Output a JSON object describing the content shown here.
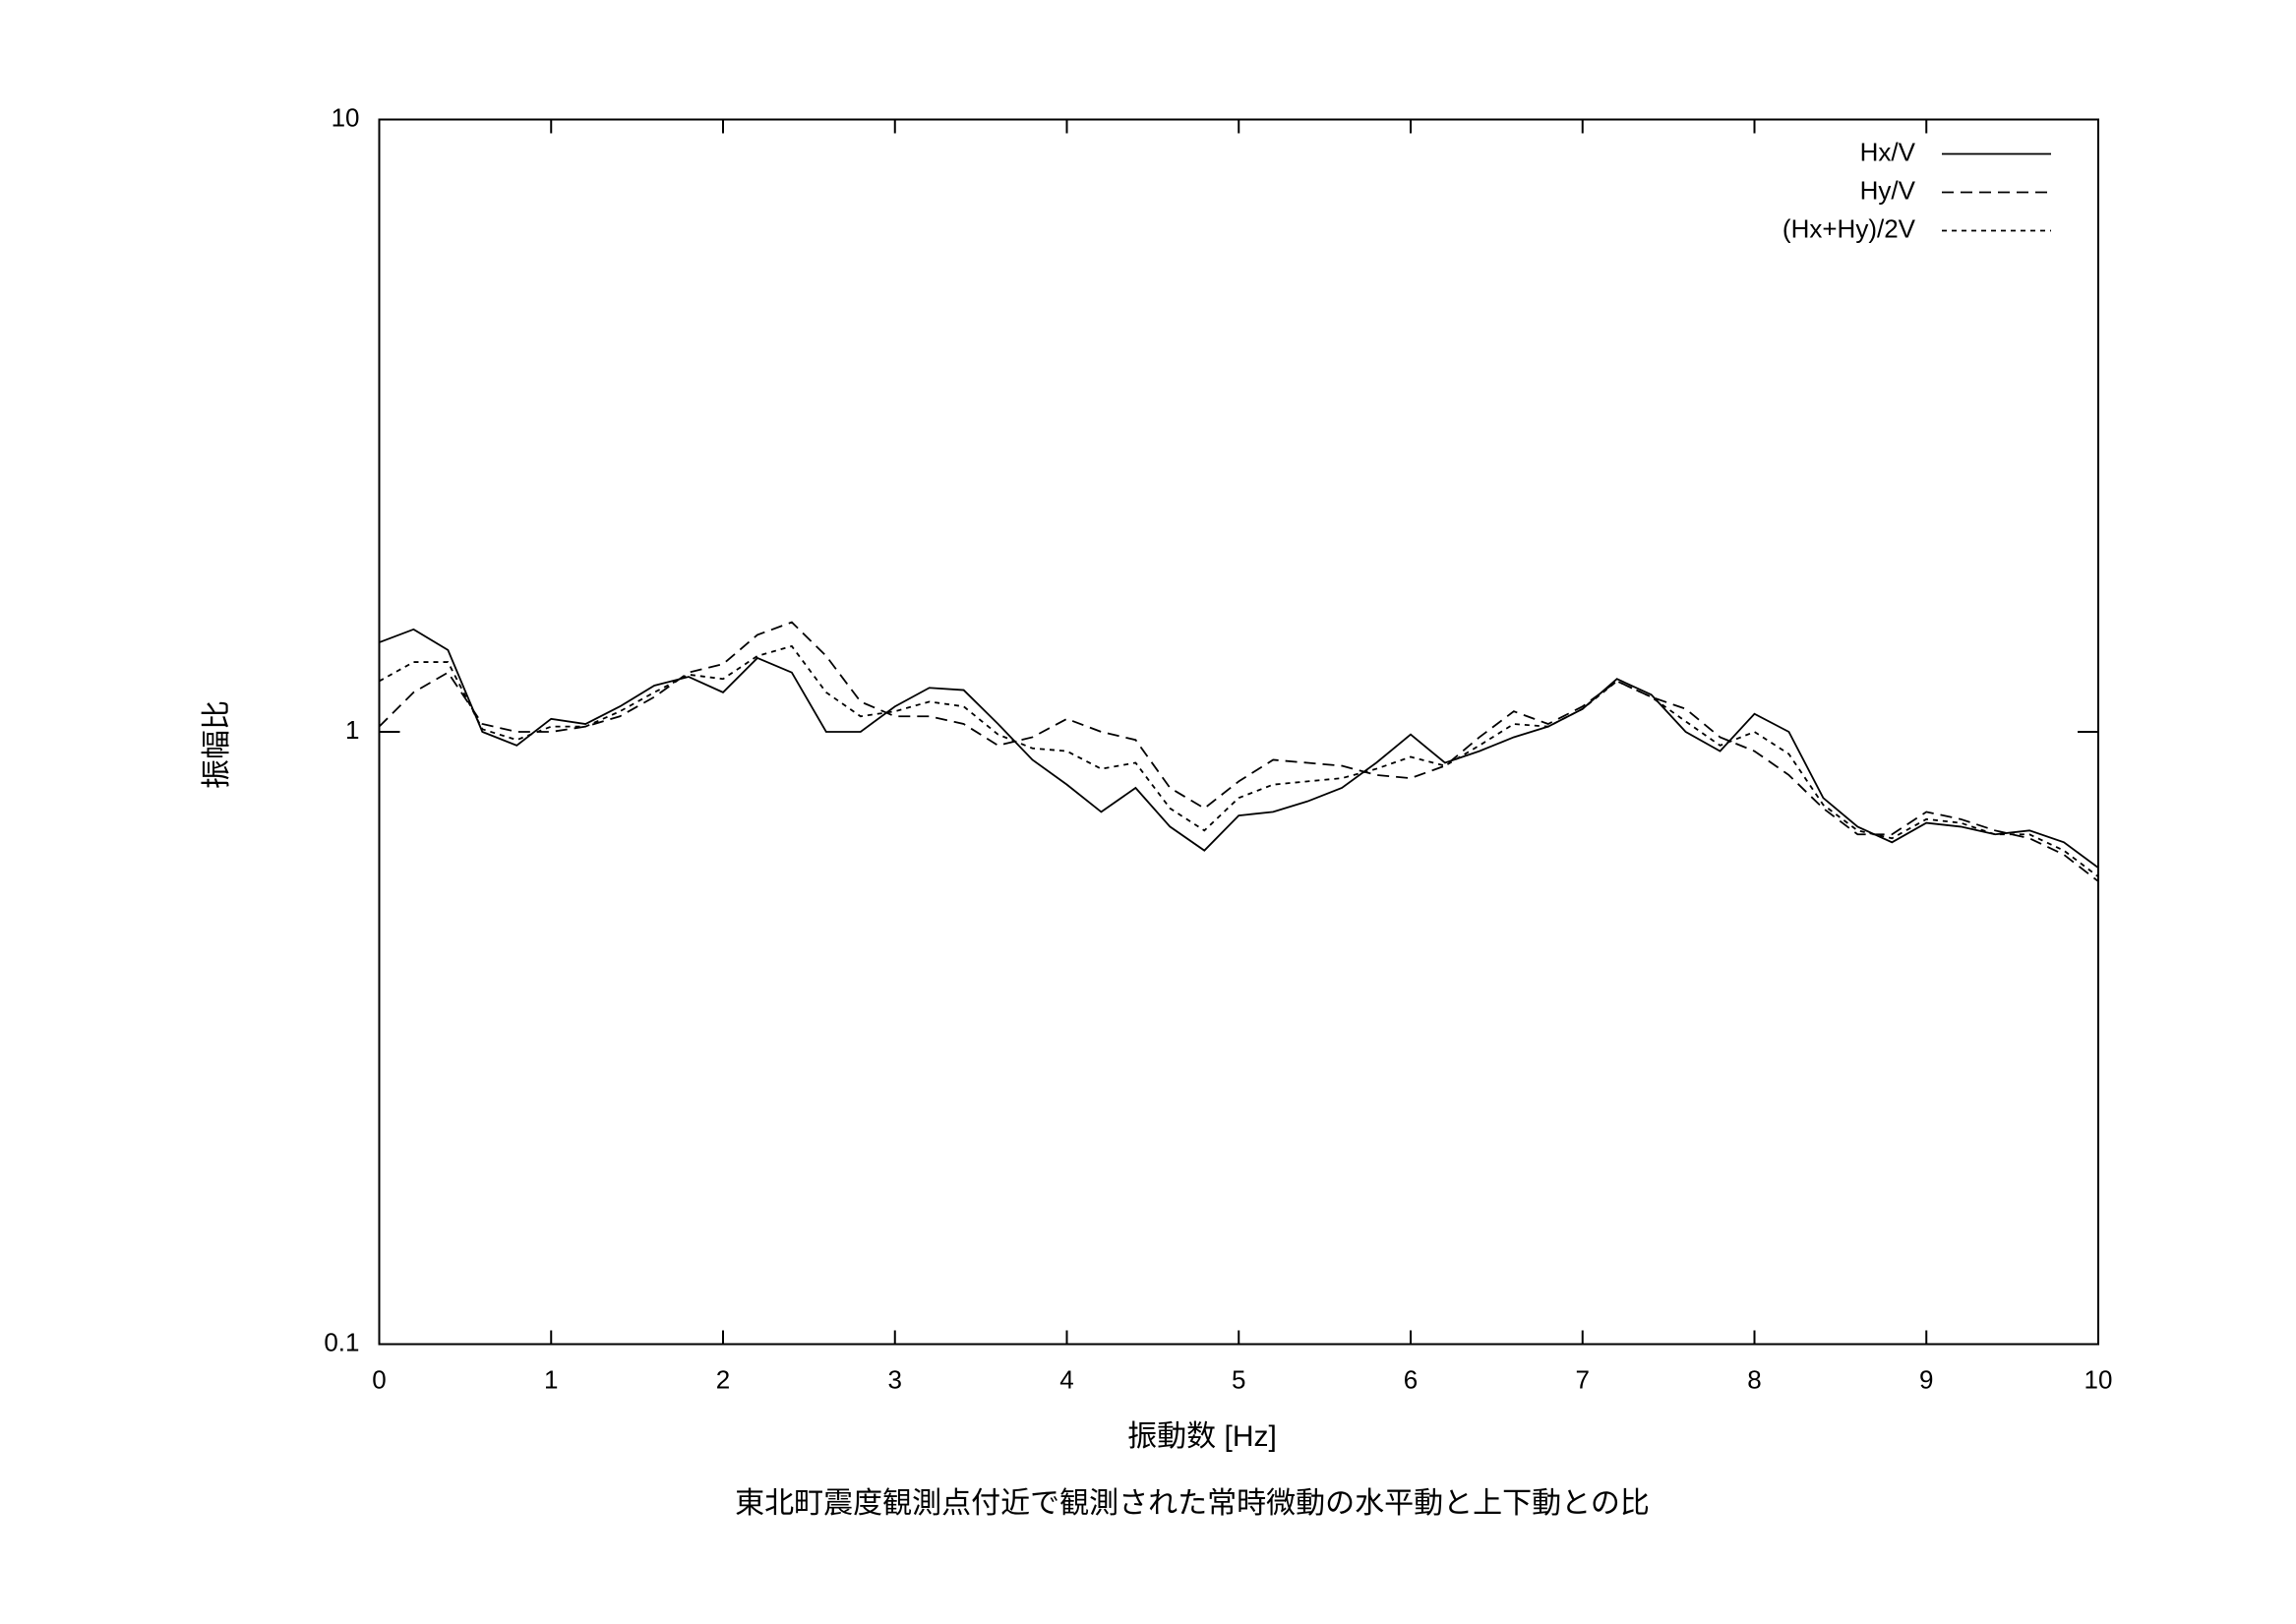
{
  "chart_data": {
    "type": "line",
    "title": "東北町震度観測点付近で観測された常時微動の水平動と上下動との比",
    "x_label": "振動数 [Hz]",
    "y_label": "振幅比",
    "x": [
      0,
      0.2,
      0.4,
      0.6,
      0.8,
      1,
      1.2,
      1.4,
      1.6,
      1.8,
      2,
      2.2,
      2.4,
      2.6,
      2.8,
      3,
      3.2,
      3.4,
      3.6,
      3.8,
      4,
      4.2,
      4.4,
      4.6,
      4.8,
      5,
      5.2,
      5.4,
      5.6,
      5.8,
      6,
      6.2,
      6.4,
      6.6,
      6.8,
      7,
      7.2,
      7.4,
      7.6,
      7.8,
      8,
      8.2,
      8.4,
      8.6,
      8.8,
      9,
      9.2,
      9.4,
      9.6,
      9.8,
      10
    ],
    "series": [
      {
        "name": "Hx/V",
        "color": "#000000",
        "dash": "none",
        "values": [
          1.4,
          1.47,
          1.36,
          1.0,
          0.95,
          1.05,
          1.03,
          1.1,
          1.19,
          1.23,
          1.16,
          1.32,
          1.25,
          1.0,
          1.0,
          1.1,
          1.18,
          1.17,
          1.03,
          0.9,
          0.82,
          0.74,
          0.81,
          0.7,
          0.64,
          0.73,
          0.74,
          0.77,
          0.81,
          0.89,
          0.99,
          0.89,
          0.93,
          0.98,
          1.02,
          1.09,
          1.22,
          1.15,
          1.0,
          0.93,
          1.07,
          1.0,
          0.78,
          0.7,
          0.66,
          0.71,
          0.7,
          0.68,
          0.69,
          0.66,
          0.6
        ]
      },
      {
        "name": "Hy/V",
        "color": "#000000",
        "dash": "12 7",
        "values": [
          1.02,
          1.16,
          1.25,
          1.03,
          1.0,
          1.0,
          1.02,
          1.06,
          1.14,
          1.25,
          1.29,
          1.44,
          1.51,
          1.33,
          1.12,
          1.06,
          1.06,
          1.03,
          0.95,
          0.98,
          1.05,
          1.0,
          0.97,
          0.81,
          0.75,
          0.83,
          0.9,
          0.89,
          0.88,
          0.85,
          0.84,
          0.88,
          0.98,
          1.08,
          1.03,
          1.1,
          1.21,
          1.14,
          1.09,
          0.98,
          0.93,
          0.85,
          0.75,
          0.68,
          0.68,
          0.74,
          0.72,
          0.69,
          0.67,
          0.63,
          0.57
        ]
      },
      {
        "name": "(Hx+Hy)/2V",
        "color": "#000000",
        "dash": "5 5",
        "values": [
          1.21,
          1.3,
          1.3,
          1.01,
          0.97,
          1.02,
          1.02,
          1.08,
          1.16,
          1.24,
          1.22,
          1.33,
          1.38,
          1.16,
          1.06,
          1.08,
          1.12,
          1.1,
          0.99,
          0.94,
          0.93,
          0.87,
          0.89,
          0.75,
          0.69,
          0.78,
          0.82,
          0.83,
          0.84,
          0.87,
          0.91,
          0.88,
          0.95,
          1.03,
          1.02,
          1.09,
          1.21,
          1.14,
          1.04,
          0.95,
          1.0,
          0.92,
          0.76,
          0.69,
          0.67,
          0.72,
          0.71,
          0.68,
          0.68,
          0.64,
          0.58
        ]
      }
    ],
    "xlim": [
      0,
      10
    ],
    "xticks": [
      0,
      1,
      2,
      3,
      4,
      5,
      6,
      7,
      8,
      9,
      10
    ],
    "ylim": [
      0.1,
      10
    ],
    "yticks": [
      0.1,
      1,
      10
    ],
    "log_y": true,
    "legend": "top-right"
  }
}
